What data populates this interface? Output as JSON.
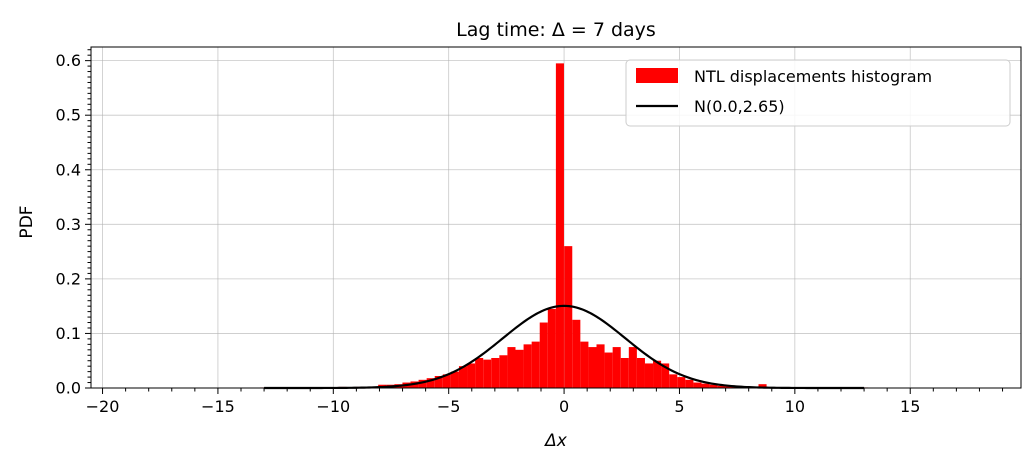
{
  "chart_data": {
    "type": "bar",
    "title": "Lag time: Δ = 7 days",
    "xlabel": "Δx",
    "ylabel": "PDF",
    "xlim": [
      -20.5,
      19.8
    ],
    "ylim": [
      0,
      0.625
    ],
    "xticks": [
      "−20",
      "−15",
      "−10",
      "−5",
      "0",
      "5",
      "10",
      "15"
    ],
    "xtick_values": [
      -20,
      -15,
      -10,
      -5,
      0,
      5,
      10,
      15
    ],
    "yticks": [
      "0.0",
      "0.1",
      "0.2",
      "0.3",
      "0.4",
      "0.5",
      "0.6"
    ],
    "ytick_values": [
      0,
      0.1,
      0.2,
      0.3,
      0.4,
      0.5,
      0.6
    ],
    "grid": true,
    "legend_position": "top-right",
    "bar_color": "#ff0000",
    "line_color": "#000000",
    "histogram": {
      "name": "NTL displacements histogram",
      "bin_width": 0.35,
      "bin_centers": [
        -13.0,
        -12.4,
        -11.7,
        -11.0,
        -10.3,
        -9.6,
        -8.9,
        -8.2,
        -7.88,
        -7.53,
        -7.18,
        -6.83,
        -6.48,
        -6.13,
        -5.78,
        -5.43,
        -5.08,
        -4.73,
        -4.38,
        -4.03,
        -3.68,
        -3.33,
        -2.98,
        -2.63,
        -2.28,
        -1.93,
        -1.58,
        -1.23,
        -0.88,
        -0.53,
        -0.18,
        0.18,
        0.53,
        0.88,
        1.23,
        1.58,
        1.93,
        2.28,
        2.63,
        2.98,
        3.33,
        3.68,
        4.03,
        4.38,
        4.73,
        5.08,
        5.43,
        5.78,
        6.13,
        6.48,
        6.83,
        7.18,
        7.53,
        7.88,
        8.2,
        8.6,
        8.95,
        9.6,
        10.3,
        11.0,
        11.7,
        12.4,
        13.0
      ],
      "values": [
        0.001,
        0.001,
        0.001,
        0.001,
        0.001,
        0.002,
        0.002,
        0.002,
        0.006,
        0.006,
        0.007,
        0.01,
        0.012,
        0.015,
        0.018,
        0.022,
        0.025,
        0.03,
        0.04,
        0.045,
        0.055,
        0.052,
        0.055,
        0.06,
        0.075,
        0.07,
        0.08,
        0.085,
        0.12,
        0.145,
        0.595,
        0.26,
        0.125,
        0.085,
        0.075,
        0.08,
        0.065,
        0.075,
        0.055,
        0.075,
        0.055,
        0.045,
        0.05,
        0.045,
        0.025,
        0.02,
        0.015,
        0.01,
        0.008,
        0.006,
        0.004,
        0.003,
        0.002,
        0.001,
        0.002,
        0.007,
        0.001,
        0.001,
        0.001,
        0.001,
        0.001,
        0.001,
        0.001
      ]
    },
    "normal_curve": {
      "name": "N(0.0,2.65)",
      "mean": 0.0,
      "std": 2.65,
      "x_range": [
        -13,
        13
      ]
    }
  }
}
